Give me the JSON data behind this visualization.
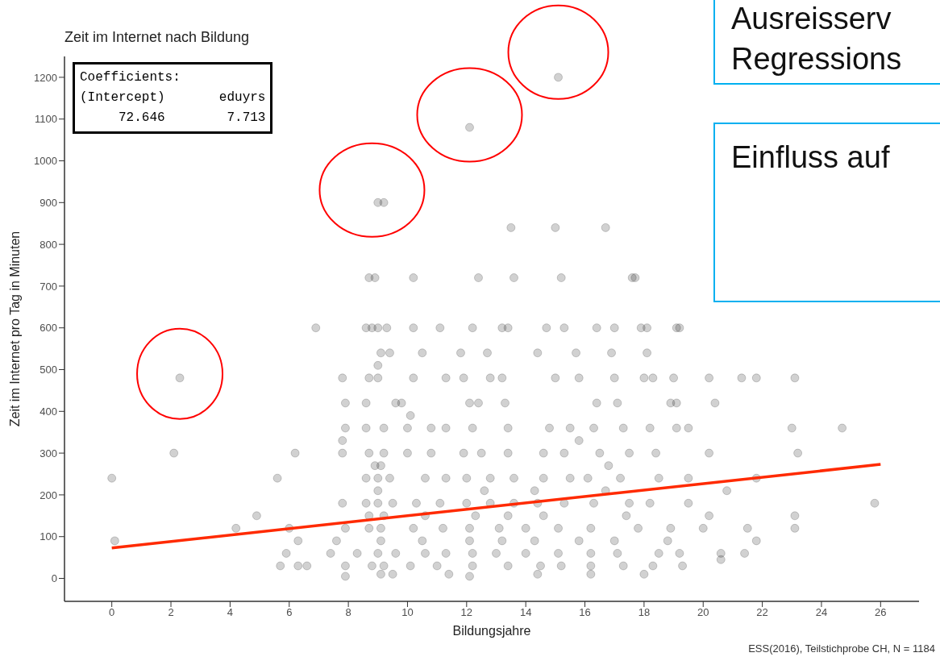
{
  "chart_data": {
    "type": "scatter",
    "title": "Zeit im Internet nach Bildung",
    "xlabel": "Bildungsjahre",
    "ylabel": "Zeit im Internet pro Tag in Minuten",
    "xlim": [
      -1.6,
      27.3
    ],
    "xticks": [
      0,
      2,
      4,
      6,
      8,
      10,
      12,
      14,
      16,
      18,
      20,
      22,
      24,
      26
    ],
    "ylim": [
      -55,
      1250
    ],
    "yticks": [
      0,
      100,
      200,
      300,
      400,
      500,
      600,
      700,
      800,
      900,
      1000,
      1100,
      1200
    ],
    "series": [
      {
        "color": "#000000",
        "marker": "circle",
        "x": [
          2.3,
          9,
          9.2,
          12.1,
          15.1,
          13.5,
          15,
          16.7,
          8.7,
          8.9,
          10.2,
          12.4,
          13.6,
          15.2,
          17.6,
          17.7,
          6.9,
          8.6,
          8.8,
          9.0,
          9.3,
          10.2,
          11.1,
          12.2,
          13.2,
          13.4,
          14.7,
          15.3,
          16.4,
          17.0,
          17.9,
          18.1,
          19.1,
          19.2,
          9.1,
          9.4,
          10.5,
          11.8,
          12.7,
          14.4,
          15.7,
          16.9,
          18.1,
          9.0,
          7.8,
          8.7,
          9.0,
          10.2,
          11.3,
          11.9,
          12.8,
          13.2,
          15.0,
          15.8,
          17.0,
          18.0,
          18.3,
          19.0,
          20.2,
          21.3,
          21.8,
          23.1,
          7.9,
          8.6,
          9.6,
          9.8,
          12.1,
          12.4,
          13.3,
          16.4,
          17.1,
          18.9,
          19.1,
          20.4,
          10.1,
          7.9,
          8.6,
          9.2,
          10.0,
          10.8,
          11.3,
          12.2,
          13.4,
          14.8,
          15.5,
          16.3,
          17.3,
          18.2,
          19.1,
          19.5,
          23.0,
          24.7,
          7.8,
          15.8,
          2.1,
          6.2,
          7.8,
          8.7,
          9.2,
          10.0,
          10.8,
          11.9,
          12.5,
          13.4,
          14.6,
          15.3,
          16.5,
          17.5,
          18.4,
          20.2,
          23.2,
          8.9,
          9.1,
          16.8,
          0,
          5.6,
          8.6,
          9.0,
          9.4,
          10.6,
          11.3,
          12.0,
          12.8,
          13.6,
          14.6,
          15.5,
          16.1,
          17.2,
          18.5,
          19.5,
          21.8,
          9.0,
          12.6,
          14.3,
          16.7,
          20.8,
          7.8,
          8.6,
          9.0,
          9.5,
          10.3,
          11.1,
          12.0,
          12.8,
          13.6,
          14.4,
          15.3,
          16.3,
          17.5,
          18.2,
          19.5,
          25.8,
          4.9,
          8.7,
          9.2,
          10.6,
          12.3,
          13.4,
          14.6,
          17.4,
          20.2,
          23.1,
          4.2,
          6.0,
          7.9,
          8.7,
          9.1,
          10.2,
          11.2,
          12.1,
          13.1,
          14.0,
          15.1,
          16.2,
          17.8,
          18.9,
          20.0,
          21.5,
          23.1,
          0.1,
          6.3,
          7.6,
          9.1,
          10.5,
          12.1,
          13.2,
          14.3,
          15.8,
          17.0,
          18.8,
          21.8,
          5.9,
          7.4,
          8.3,
          9.0,
          9.6,
          10.6,
          11.3,
          12.2,
          13.0,
          14.0,
          15.1,
          16.2,
          17.1,
          18.5,
          19.2,
          20.6,
          21.4,
          20.6,
          5.7,
          6.3,
          6.6,
          7.9,
          8.8,
          9.2,
          10.1,
          11.0,
          12.2,
          13.4,
          14.5,
          15.2,
          16.2,
          17.3,
          18.3,
          19.3,
          7.9,
          9.1,
          9.5,
          11.4,
          12.1,
          14.4,
          16.2,
          18.0
        ],
        "values": [
          480,
          900,
          900,
          1080,
          1200,
          840,
          840,
          840,
          720,
          720,
          720,
          720,
          720,
          720,
          720,
          720,
          600,
          600,
          600,
          600,
          600,
          600,
          600,
          600,
          600,
          600,
          600,
          600,
          600,
          600,
          600,
          600,
          600,
          600,
          540,
          540,
          540,
          540,
          540,
          540,
          540,
          540,
          540,
          510,
          480,
          480,
          480,
          480,
          480,
          480,
          480,
          480,
          480,
          480,
          480,
          480,
          480,
          480,
          480,
          480,
          480,
          480,
          420,
          420,
          420,
          420,
          420,
          420,
          420,
          420,
          420,
          420,
          420,
          420,
          390,
          360,
          360,
          360,
          360,
          360,
          360,
          360,
          360,
          360,
          360,
          360,
          360,
          360,
          360,
          360,
          360,
          360,
          330,
          330,
          300,
          300,
          300,
          300,
          300,
          300,
          300,
          300,
          300,
          300,
          300,
          300,
          300,
          300,
          300,
          300,
          300,
          270,
          270,
          270,
          240,
          240,
          240,
          240,
          240,
          240,
          240,
          240,
          240,
          240,
          240,
          240,
          240,
          240,
          240,
          240,
          240,
          210,
          210,
          210,
          210,
          210,
          180,
          180,
          180,
          180,
          180,
          180,
          180,
          180,
          180,
          180,
          180,
          180,
          180,
          180,
          180,
          180,
          150,
          150,
          150,
          150,
          150,
          150,
          150,
          150,
          150,
          150,
          120,
          120,
          120,
          120,
          120,
          120,
          120,
          120,
          120,
          120,
          120,
          120,
          120,
          120,
          120,
          120,
          120,
          90,
          90,
          90,
          90,
          90,
          90,
          90,
          90,
          90,
          90,
          90,
          90,
          60,
          60,
          60,
          60,
          60,
          60,
          60,
          60,
          60,
          60,
          60,
          60,
          60,
          60,
          60,
          60,
          60,
          45,
          30,
          30,
          30,
          30,
          30,
          30,
          30,
          30,
          30,
          30,
          30,
          30,
          30,
          30,
          30,
          30,
          5,
          10,
          10,
          10,
          5,
          10,
          10,
          10
        ]
      },
      {
        "type": "line",
        "color": "#ff2a00",
        "x": [
          0,
          26
        ],
        "values": [
          73,
          273
        ]
      }
    ],
    "annotations": [
      "Coefficients:\n(Intercept)       eduyrs\n     72.646        7.713",
      "ESS(2016), Teilstichprobe CH, N = 1184",
      "Ausreisserv\nRegressions",
      "Einfluss auf"
    ]
  }
}
